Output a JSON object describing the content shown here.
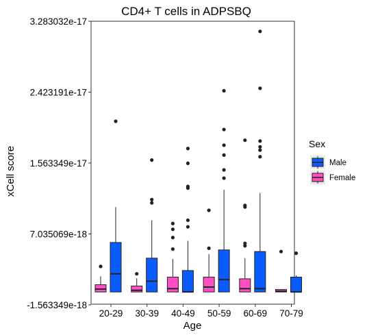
{
  "chart_data": {
    "type": "boxplot",
    "title": "CD4+ T cells in ADPSBQ",
    "xlabel": "Age",
    "ylabel": "xCell score",
    "categories": [
      "20-29",
      "30-39",
      "40-49",
      "50-59",
      "60-69",
      "70-79"
    ],
    "yticks": [
      "-1.563349e-18",
      "7.035069e-18",
      "1.563349e-17",
      "2.423191e-17",
      "3.283032e-17"
    ],
    "yticks_values": [
      -1.563349e-18,
      7.035069e-18,
      1.563349e-17,
      2.423191e-17,
      3.283032e-17
    ],
    "ylim": [
      -1.563349e-18,
      3.283032e-17
    ],
    "grid": false,
    "legend": {
      "title": "Sex",
      "position": "right",
      "entries": [
        "Male",
        "Female"
      ]
    },
    "series": [
      {
        "name": "Female",
        "color": "#ff4fc3",
        "boxes": [
          {
            "category": "20-29",
            "min": 0,
            "q1": 0,
            "median": 3.5e-19,
            "q3": 8.8e-19,
            "max": 1.9e-18,
            "outliers": [
              3.1e-18
            ]
          },
          {
            "category": "30-39",
            "min": 0,
            "q1": 0,
            "median": 2e-19,
            "q3": 7.2e-19,
            "max": 1.65e-18,
            "outliers": [
              2.2e-18
            ]
          },
          {
            "category": "40-49",
            "min": 0,
            "q1": 0,
            "median": 4e-19,
            "q3": 1.8e-18,
            "max": 4e-18,
            "outliers": [
              5.2e-18,
              6.6e-18,
              7.6e-18,
              8.3e-18
            ]
          },
          {
            "category": "50-59",
            "min": 0,
            "q1": 0,
            "median": 6e-19,
            "q3": 1.8e-18,
            "max": 4.6e-18,
            "outliers": [
              5.3e-18,
              9.9e-18
            ]
          },
          {
            "category": "60-69",
            "min": 0,
            "q1": 0,
            "median": 4e-19,
            "q3": 1.6e-18,
            "max": 4.1e-18,
            "outliers": [
              5.6e-18,
              5.9e-18,
              1.03e-17,
              1.05e-17,
              1.84e-17
            ]
          },
          {
            "category": "70-79",
            "min": 0,
            "q1": 0,
            "median": 1e-19,
            "q3": 3e-19,
            "max": 3e-19,
            "outliers": [
              4.9e-18
            ]
          }
        ]
      },
      {
        "name": "Male",
        "color": "#0a5cff",
        "boxes": [
          {
            "category": "20-29",
            "min": 0,
            "q1": 0,
            "median": 2.2e-18,
            "q3": 6e-18,
            "max": 1.03e-17,
            "outliers": [
              2.07e-17
            ]
          },
          {
            "category": "30-39",
            "min": 0,
            "q1": 0,
            "median": 1.3e-18,
            "q3": 4.1e-18,
            "max": 8.7e-18,
            "outliers": [
              1.08e-17,
              1.12e-17,
              1.6e-17
            ]
          },
          {
            "category": "40-49",
            "min": 0,
            "q1": 0,
            "median": 0,
            "q3": 2.6e-18,
            "max": 6.2e-18,
            "outliers": [
              7.9e-18,
              8.7e-18,
              1.26e-17,
              1.28e-17,
              1.56e-17,
              1.74e-17
            ]
          },
          {
            "category": "50-59",
            "min": 0,
            "q1": 0,
            "median": 1.5e-18,
            "q3": 5.1e-18,
            "max": 1.24e-17,
            "outliers": [
              1.38e-17,
              1.48e-17,
              1.66e-17,
              1.78e-17,
              1.97e-17,
              2.44e-17
            ]
          },
          {
            "category": "60-69",
            "min": 0,
            "q1": 0,
            "median": 4e-19,
            "q3": 4.9e-18,
            "max": 1.2e-17,
            "outliers": [
              1.64e-17,
              1.72e-17,
              1.76e-17,
              1.83e-17,
              2.47e-17,
              3.16e-17
            ]
          },
          {
            "category": "70-79",
            "min": 0,
            "q1": 0,
            "median": 0,
            "q3": 1.8e-18,
            "max": 2e-18,
            "outliers": [
              4.7e-18
            ]
          }
        ]
      }
    ]
  }
}
